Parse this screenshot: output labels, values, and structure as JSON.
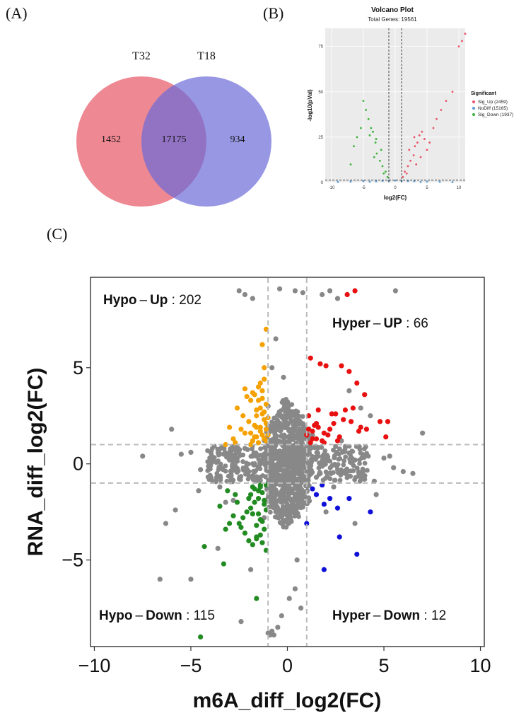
{
  "panels": {
    "a": "(A)",
    "b": "(B)",
    "c": "(C)"
  },
  "venn": {
    "left": {
      "label": "T32",
      "only": "1452",
      "color": "#e8606e"
    },
    "right": {
      "label": "T18",
      "only": "934",
      "color": "#6b6bd9"
    },
    "intersection": "17175",
    "overlap_color": "#8b4a9e"
  },
  "chart_data": [
    {
      "type": "scatter",
      "title": "Volcano Plot",
      "subtitle": "Total Genes: 19561",
      "xlabel": "log2(FC)",
      "ylabel": "-log10(pVal)",
      "xlim": [
        -11,
        11
      ],
      "ylim": [
        0,
        85
      ],
      "xticks": [
        -10,
        -5,
        0,
        5,
        10
      ],
      "yticks": [
        0,
        25,
        50,
        75
      ],
      "vlines": [
        -1,
        1
      ],
      "hline": 1.3,
      "grid": true,
      "legend_position": "right",
      "legend_title": "Significant",
      "series": [
        {
          "name": "Sig_Up (2459)",
          "color": "#e8546a",
          "x": [
            1.2,
            1.5,
            2.0,
            2.4,
            2.9,
            3.1,
            3.5,
            3.8,
            4.2,
            4.6,
            5.0,
            5.4,
            6.0,
            6.5,
            7.2,
            8.0,
            9.0,
            10.0,
            10.5,
            11.0,
            2.2,
            3.0,
            3.3,
            4.0,
            1.8
          ],
          "y": [
            3,
            6,
            9,
            12,
            15,
            20,
            22,
            26,
            28,
            24,
            18,
            22,
            30,
            35,
            40,
            45,
            50,
            75,
            78,
            82,
            18,
            25,
            10,
            14,
            5
          ]
        },
        {
          "name": "NoDiff (15165)",
          "color": "#5b9bd5",
          "x": [
            -9,
            -7,
            -5,
            -3,
            -1,
            0,
            1,
            3,
            5,
            7,
            9,
            -4,
            -2,
            2,
            4
          ],
          "y": [
            0.3,
            0.5,
            0.8,
            0.6,
            1,
            1.1,
            0.9,
            0.7,
            0.5,
            0.4,
            0.2,
            0.4,
            0.9,
            0.8,
            0.3
          ]
        },
        {
          "name": "Sig_Down (1937)",
          "color": "#3cb43c",
          "x": [
            -1.2,
            -1.5,
            -2.0,
            -2.4,
            -2.9,
            -3.1,
            -3.5,
            -3.8,
            -4.2,
            -4.6,
            -5.0,
            -5.4,
            -6.0,
            -6.5,
            -7.0,
            -2.2,
            -3.0,
            -3.3,
            -4.0,
            -1.8
          ],
          "y": [
            3,
            6,
            9,
            12,
            16,
            22,
            28,
            30,
            35,
            40,
            45,
            30,
            25,
            20,
            10,
            18,
            24,
            14,
            26,
            5
          ]
        }
      ]
    },
    {
      "type": "scatter",
      "xlabel": "m6A_diff_log2(FC)",
      "ylabel": "RNA_diff_log2(FC)",
      "xlim": [
        -10.2,
        10.2
      ],
      "ylim": [
        -9.5,
        9.7
      ],
      "xticks": [
        -10,
        -5,
        0,
        5,
        10
      ],
      "yticks": [
        -5,
        0,
        5
      ],
      "vlines": [
        -1,
        1
      ],
      "hlines": [
        -1,
        1
      ],
      "annotations": [
        {
          "bold": "Hypo",
          "bold2": "Up",
          "count": "202"
        },
        {
          "bold": "Hyper",
          "bold2": "UP",
          "count": "66"
        },
        {
          "bold": "Hypo",
          "bold2": "Down",
          "count": "115"
        },
        {
          "bold": "Hyper",
          "bold2": "Down",
          "count": "12"
        }
      ],
      "series": [
        {
          "key": "ns",
          "color": "#888888",
          "x": [
            -2.5,
            -2.2,
            -1.8,
            -0.4,
            0.4,
            0.8,
            1.8,
            2.2,
            2.6,
            5.6,
            -7.5,
            -6.0,
            -5.5,
            -5.0,
            -4.5,
            -4.0,
            -3.5,
            -3.0,
            -2.6,
            -2.0,
            -1.5,
            -0.5,
            0.0,
            0.3,
            0.6,
            1.0,
            1.5,
            2.0,
            2.5,
            3.0,
            3.5,
            4.0,
            4.5,
            5.0,
            5.5,
            6.0,
            6.5,
            7.0,
            -1.0,
            -0.8,
            -0.6,
            -0.2,
            0.2,
            0.5,
            -3.2,
            -4.0,
            -2.8,
            -1.2,
            1.3,
            2.8,
            3.2,
            3.8,
            4.3,
            -6.6,
            -5.0,
            -3.6,
            -1.9,
            -2.4,
            -0.8,
            -0.9,
            -1.0,
            -0.7,
            -0.5,
            -0.3,
            0.1,
            0.4,
            0.7,
            -1.5,
            -1.8,
            -2.2,
            -2.8,
            -3.3,
            -0.6,
            -0.4,
            3.5,
            2.0,
            1.2,
            0.9,
            -1.1,
            -0.3,
            0.3,
            -0.7,
            -0.2,
            0.6,
            1.4,
            1.7,
            2.4,
            4.6,
            5.3,
            -4.6,
            -5.8,
            -6.3
          ],
          "y": [
            9.0,
            8.8,
            8.6,
            9.1,
            9.0,
            8.9,
            8.8,
            9.0,
            8.6,
            9.0,
            0.4,
            1.8,
            0.5,
            0.6,
            -0.3,
            -0.6,
            -1.2,
            0.2,
            0.3,
            -0.4,
            -0.8,
            0.5,
            -0.3,
            0.3,
            0.6,
            -0.4,
            -0.7,
            0.4,
            0.9,
            -0.5,
            0.2,
            -0.8,
            -0.9,
            0.3,
            -0.2,
            -0.4,
            -0.5,
            1.6,
            3.0,
            5.0,
            6.5,
            4.5,
            -3.0,
            -5.0,
            -2.0,
            -0.8,
            -1.9,
            -2.8,
            1.5,
            1.2,
            3.8,
            2.9,
            2.5,
            -6.0,
            -6.0,
            -4.4,
            -5.5,
            -8.2,
            -8.7,
            -8.9,
            -8.8,
            -8.9,
            -8.5,
            -7.9,
            -7.0,
            -6.5,
            -7.5,
            -0.2,
            0.4,
            0.8,
            -0.3,
            0.5,
            2.0,
            -2.5,
            -3.1,
            -2.5,
            0.8,
            1.4,
            0.1,
            -0.1,
            0.2,
            0.7,
            -0.6,
            -0.9,
            0.9,
            -0.5,
            -1.2,
            -1.6,
            0.4,
            -1.4,
            -2.4,
            -3.1
          ]
        },
        {
          "key": "hyper_up",
          "color": "#e81010",
          "x": [
            3.5,
            3.1,
            1.2,
            1.7,
            2.0,
            2.8,
            3.2,
            3.6,
            1.0,
            1.5,
            2.2,
            2.5,
            3.0,
            3.3,
            4.0,
            4.1,
            4.8,
            5.1,
            5.2,
            1.1,
            1.3,
            1.6,
            1.9,
            2.4,
            2.7,
            3.4,
            3.7,
            1.2,
            1.4,
            1.8,
            2.1,
            2.9,
            3.8,
            2.3,
            1.6,
            1.3,
            2.6,
            1.9,
            1.1,
            1.5
          ],
          "y": [
            9.0,
            8.8,
            5.5,
            5.2,
            5.1,
            5.1,
            4.8,
            4.2,
            1.5,
            2.1,
            1.8,
            2.6,
            2.8,
            2.2,
            3.6,
            1.8,
            2.2,
            1.4,
            2.2,
            2.5,
            1.3,
            1.9,
            1.6,
            2.1,
            1.4,
            2.9,
            1.7,
            1.1,
            2.0,
            1.2,
            1.5,
            2.3,
            1.9,
            2.6,
            2.8,
            1.7,
            1.2,
            1.1,
            1.8,
            1.3
          ]
        },
        {
          "key": "hypo_up",
          "color": "#f5a100",
          "x": [
            -1.1,
            -1.3,
            -1.5,
            -1.7,
            -1.9,
            -2.1,
            -2.3,
            -1.2,
            -1.4,
            -1.6,
            -1.8,
            -2.0,
            -2.2,
            -1.1,
            -1.3,
            -1.5,
            -1.7,
            -1.9,
            -2.4,
            -2.6,
            -1.2,
            -1.4,
            -1.6,
            -1.8,
            -1.1,
            -1.3,
            -1.5,
            -1.0,
            -1.2,
            -1.4,
            -1.6,
            -2.8,
            -3.0,
            -1.3,
            -1.2,
            -1.1,
            -1.5,
            -1.9,
            -2.2,
            -1.7,
            -1.4,
            -1.1,
            -1.3,
            -1.6,
            -1.0,
            -1.2,
            -2.7,
            -3.2
          ],
          "y": [
            7.0,
            6.2,
            4.0,
            3.6,
            3.3,
            3.5,
            2.5,
            5.0,
            4.2,
            2.8,
            3.7,
            2.2,
            3.9,
            3.1,
            2.6,
            3.3,
            2.0,
            1.6,
            1.8,
            2.9,
            2.3,
            1.9,
            1.4,
            1.2,
            1.8,
            1.5,
            1.1,
            2.4,
            1.3,
            1.7,
            2.5,
            1.3,
            1.9,
            3.8,
            4.4,
            2.1,
            1.1,
            1.0,
            1.6,
            1.4,
            2.9,
            1.2,
            3.4,
            1.9,
            1.5,
            2.7,
            1.1,
            1.0
          ]
        },
        {
          "key": "hypo_down",
          "color": "#228b22",
          "x": [
            -1.1,
            -1.3,
            -1.5,
            -1.7,
            -1.9,
            -2.1,
            -2.3,
            -2.5,
            -1.2,
            -1.4,
            -1.6,
            -1.8,
            -2.0,
            -2.2,
            -2.4,
            -2.8,
            -3.0,
            -3.2,
            -3.5,
            -4.3,
            -3.3,
            -1.1,
            -1.3,
            -1.5,
            -1.7,
            -1.9,
            -1.2,
            -1.4,
            -1.6,
            -1.8,
            -1.5,
            -1.6,
            -2.6,
            -4.5,
            -1.4,
            -1.1,
            -1.3,
            -1.2,
            -1.8,
            -2.0,
            -2.7,
            -3.1,
            -1.6,
            -1.4
          ],
          "y": [
            -1.1,
            -1.5,
            -1.8,
            -2.0,
            -2.3,
            -2.5,
            -2.8,
            -3.1,
            -3.4,
            -3.7,
            -3.9,
            -4.2,
            -4.0,
            -3.6,
            -3.3,
            -2.7,
            -3.1,
            -3.4,
            -2.2,
            -4.3,
            -5.2,
            -4.5,
            -4.1,
            -2.6,
            -1.3,
            -1.6,
            -2.1,
            -2.9,
            -3.2,
            -1.2,
            -1.4,
            -3.8,
            -2.0,
            -9.0,
            -1.1,
            -2.4,
            -3.0,
            -1.9,
            -2.6,
            -1.8,
            -1.6,
            -1.4,
            -7.0,
            -1.2
          ]
        },
        {
          "key": "hyper_down",
          "color": "#1010d8",
          "x": [
            1.3,
            1.5,
            1.8,
            1.9,
            2.2,
            2.6,
            3.2,
            1.0,
            2.7,
            3.6,
            1.9,
            4.3
          ],
          "y": [
            -1.3,
            -1.6,
            -1.1,
            -2.1,
            -1.8,
            -2.3,
            -1.8,
            -3.1,
            -3.8,
            -4.7,
            -5.5,
            -2.5
          ]
        }
      ]
    }
  ]
}
